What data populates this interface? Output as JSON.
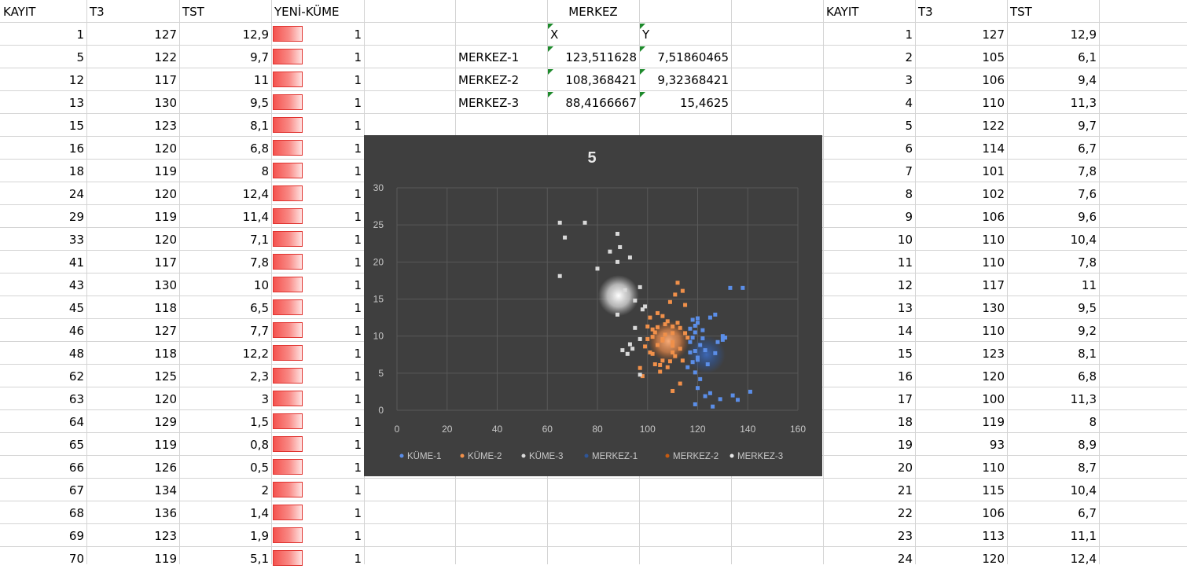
{
  "left_table": {
    "headers": [
      "KAYIT",
      "T3",
      "TST",
      "YENİ-KÜME"
    ],
    "rows": [
      [
        "1",
        "127",
        "12,9",
        "1"
      ],
      [
        "5",
        "122",
        "9,7",
        "1"
      ],
      [
        "12",
        "117",
        "11",
        "1"
      ],
      [
        "13",
        "130",
        "9,5",
        "1"
      ],
      [
        "15",
        "123",
        "8,1",
        "1"
      ],
      [
        "16",
        "120",
        "6,8",
        "1"
      ],
      [
        "18",
        "119",
        "8",
        "1"
      ],
      [
        "24",
        "120",
        "12,4",
        "1"
      ],
      [
        "29",
        "119",
        "11,4",
        "1"
      ],
      [
        "33",
        "120",
        "7,1",
        "1"
      ],
      [
        "41",
        "117",
        "7,8",
        "1"
      ],
      [
        "43",
        "130",
        "10",
        "1"
      ],
      [
        "45",
        "118",
        "6,5",
        "1"
      ],
      [
        "46",
        "127",
        "7,7",
        "1"
      ],
      [
        "48",
        "118",
        "12,2",
        "1"
      ],
      [
        "62",
        "125",
        "2,3",
        "1"
      ],
      [
        "63",
        "120",
        "3",
        "1"
      ],
      [
        "64",
        "129",
        "1,5",
        "1"
      ],
      [
        "65",
        "119",
        "0,8",
        "1"
      ],
      [
        "66",
        "126",
        "0,5",
        "1"
      ],
      [
        "67",
        "134",
        "2",
        "1"
      ],
      [
        "68",
        "136",
        "1,4",
        "1"
      ],
      [
        "69",
        "123",
        "1,9",
        "1"
      ],
      [
        "70",
        "119",
        "5,1",
        "1"
      ]
    ],
    "bar_color": "#f4534f"
  },
  "merkez": {
    "title": "MERKEZ",
    "col_x": "X",
    "col_y": "Y",
    "rows": [
      {
        "name": "MERKEZ-1",
        "x": "123,511628",
        "y": "7,51860465"
      },
      {
        "name": "MERKEZ-2",
        "x": "108,368421",
        "y": "9,32368421"
      },
      {
        "name": "MERKEZ-3",
        "x": "88,4166667",
        "y": "15,4625"
      }
    ]
  },
  "right_table": {
    "headers": [
      "KAYIT",
      "T3",
      "TST"
    ],
    "rows": [
      [
        "1",
        "127",
        "12,9"
      ],
      [
        "2",
        "105",
        "6,1"
      ],
      [
        "3",
        "106",
        "9,4"
      ],
      [
        "4",
        "110",
        "11,3"
      ],
      [
        "5",
        "122",
        "9,7"
      ],
      [
        "6",
        "114",
        "6,7"
      ],
      [
        "7",
        "101",
        "7,8"
      ],
      [
        "8",
        "102",
        "7,6"
      ],
      [
        "9",
        "106",
        "9,6"
      ],
      [
        "10",
        "110",
        "10,4"
      ],
      [
        "11",
        "110",
        "7,8"
      ],
      [
        "12",
        "117",
        "11"
      ],
      [
        "13",
        "130",
        "9,5"
      ],
      [
        "14",
        "110",
        "9,2"
      ],
      [
        "15",
        "123",
        "8,1"
      ],
      [
        "16",
        "120",
        "6,8"
      ],
      [
        "17",
        "100",
        "11,3"
      ],
      [
        "18",
        "119",
        "8"
      ],
      [
        "19",
        "93",
        "8,9"
      ],
      [
        "20",
        "110",
        "8,7"
      ],
      [
        "21",
        "115",
        "10,4"
      ],
      [
        "22",
        "106",
        "6,7"
      ],
      [
        "23",
        "113",
        "11,1"
      ],
      [
        "24",
        "120",
        "12,4"
      ]
    ]
  },
  "chart_data": {
    "type": "scatter",
    "title": "5",
    "xlim": [
      0,
      160
    ],
    "ylim": [
      0,
      30
    ],
    "x_ticks": [
      0,
      20,
      40,
      60,
      80,
      100,
      120,
      140,
      160
    ],
    "y_ticks": [
      0,
      5,
      10,
      15,
      20,
      25,
      30
    ],
    "grid": true,
    "legend_position": "bottom",
    "background": "#3f3f3f",
    "series": [
      {
        "name": "KÜME-1",
        "color": "#5b8ee8",
        "points": [
          [
            127,
            12.9
          ],
          [
            122,
            9.7
          ],
          [
            117,
            11
          ],
          [
            130,
            9.5
          ],
          [
            123,
            8.1
          ],
          [
            120,
            6.8
          ],
          [
            119,
            8
          ],
          [
            120,
            12.4
          ],
          [
            119,
            11.4
          ],
          [
            120,
            7.1
          ],
          [
            117,
            7.8
          ],
          [
            130,
            10
          ],
          [
            118,
            6.5
          ],
          [
            127,
            7.7
          ],
          [
            118,
            12.2
          ],
          [
            125,
            2.3
          ],
          [
            120,
            3
          ],
          [
            129,
            1.5
          ],
          [
            119,
            0.8
          ],
          [
            126,
            0.5
          ],
          [
            134,
            2
          ],
          [
            136,
            1.4
          ],
          [
            123,
            1.9
          ],
          [
            119,
            5.1
          ],
          [
            133,
            16.5
          ],
          [
            138,
            16.5
          ],
          [
            125,
            12.5
          ],
          [
            122,
            10.8
          ],
          [
            128,
            9.2
          ],
          [
            118,
            9.8
          ],
          [
            121,
            4.2
          ],
          [
            141,
            2.5
          ],
          [
            131,
            9.8
          ],
          [
            124,
            6.2
          ],
          [
            116,
            5.8
          ],
          [
            119,
            10.5
          ],
          [
            121,
            8.8
          ],
          [
            117,
            9.2
          ],
          [
            120,
            11.8
          ]
        ]
      },
      {
        "name": "KÜME-2",
        "color": "#f0904a",
        "points": [
          [
            105,
            6.1
          ],
          [
            106,
            9.4
          ],
          [
            110,
            11.3
          ],
          [
            114,
            6.7
          ],
          [
            101,
            7.8
          ],
          [
            102,
            7.6
          ],
          [
            106,
            9.6
          ],
          [
            110,
            10.4
          ],
          [
            110,
            7.8
          ],
          [
            110,
            9.2
          ],
          [
            100,
            11.3
          ],
          [
            110,
            8.7
          ],
          [
            115,
            10.4
          ],
          [
            106,
            6.7
          ],
          [
            113,
            11.1
          ],
          [
            112,
            17.2
          ],
          [
            114,
            16.1
          ],
          [
            111,
            15.6
          ],
          [
            109,
            14.6
          ],
          [
            115,
            14.2
          ],
          [
            104,
            13.1
          ],
          [
            101,
            12.5
          ],
          [
            108,
            12.0
          ],
          [
            112,
            11.8
          ],
          [
            103,
            10.5
          ],
          [
            107,
            10.2
          ],
          [
            104,
            8.8
          ],
          [
            100,
            9.6
          ],
          [
            99,
            8.6
          ],
          [
            111,
            7.3
          ],
          [
            103,
            6.2
          ],
          [
            108,
            5.8
          ],
          [
            97,
            5.7
          ],
          [
            113,
            3.6
          ],
          [
            110,
            2.6
          ],
          [
            98,
            4.6
          ],
          [
            105,
            5.2
          ],
          [
            116,
            9.8
          ],
          [
            113,
            8.3
          ],
          [
            102,
            9.9
          ],
          [
            107,
            11.6
          ],
          [
            109,
            6.6
          ],
          [
            106,
            12.7
          ],
          [
            104,
            11.2
          ],
          [
            102,
            10.9
          ]
        ]
      },
      {
        "name": "KÜME-3",
        "color": "#d9d9d9",
        "points": [
          [
            93,
            8.9
          ],
          [
            65,
            25.3
          ],
          [
            75,
            25.3
          ],
          [
            67,
            23.3
          ],
          [
            88,
            23.8
          ],
          [
            89,
            22.0
          ],
          [
            85,
            21.4
          ],
          [
            88,
            20.0
          ],
          [
            93,
            20.6
          ],
          [
            80,
            19.1
          ],
          [
            65,
            18.1
          ],
          [
            97,
            16.6
          ],
          [
            91,
            16.2
          ],
          [
            95,
            14.8
          ],
          [
            98,
            13.6
          ],
          [
            95,
            11.1
          ],
          [
            88,
            12.9
          ],
          [
            97,
            9.6
          ],
          [
            94,
            8.3
          ],
          [
            92,
            7.6
          ],
          [
            90,
            8.1
          ],
          [
            97,
            4.8
          ],
          [
            99,
            14.0
          ]
        ]
      },
      {
        "name": "MERKEZ-1",
        "color": "#2f5597",
        "points": [
          [
            123.511628,
            7.51860465
          ]
        ]
      },
      {
        "name": "MERKEZ-2",
        "color": "#c55a11",
        "points": [
          [
            108.368421,
            9.32368421
          ]
        ]
      },
      {
        "name": "MERKEZ-3",
        "color": "#e8e8e8",
        "points": [
          [
            88.4166667,
            15.4625
          ]
        ]
      }
    ]
  }
}
